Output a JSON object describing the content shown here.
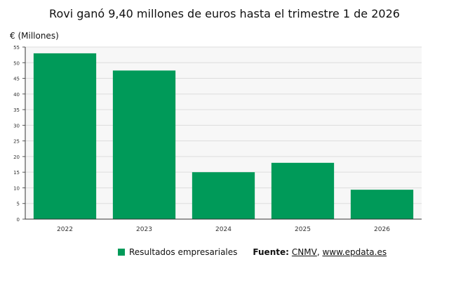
{
  "title": "Rovi ganó 9,40 millones de euros hasta el trimestre 1 de 2026",
  "unit_label": "€ (Millones)",
  "legend": {
    "series_label": "Resultados empresariales"
  },
  "source": {
    "label": "Fuente:",
    "sources": "CNMV",
    "separator": ", ",
    "site": "www.epdata.es"
  },
  "colors": {
    "bar": "#009a59",
    "grid": "#dddddd",
    "plot_bg": "#f7f7f7"
  },
  "chart_data": {
    "type": "bar",
    "categories": [
      "2022",
      "2023",
      "2024",
      "2025",
      "2026"
    ],
    "series": [
      {
        "name": "Resultados empresariales",
        "values": [
          53,
          47.5,
          15,
          18,
          9.4
        ]
      }
    ],
    "ylim": [
      0,
      55
    ],
    "yticks": [
      "0",
      "5",
      "10",
      "15",
      "20",
      "25",
      "30",
      "35",
      "40",
      "45",
      "50",
      "55"
    ],
    "grid": true,
    "legend_position": "bottom"
  }
}
